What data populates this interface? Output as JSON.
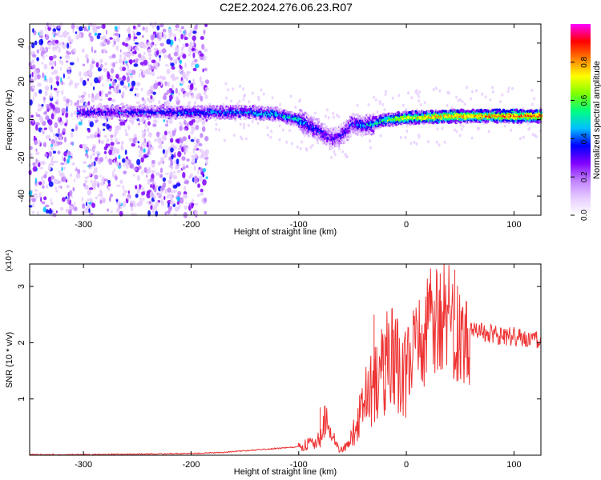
{
  "title": "C2E2.2024.276.06.23.R07",
  "chart_data": [
    {
      "type": "heatmap",
      "xlabel": "Height of straight line (km)",
      "ylabel": "Frequency (Hz)",
      "xlim": [
        -350,
        125
      ],
      "ylim": [
        -50,
        50
      ],
      "x_ticks": [
        -300,
        -200,
        -100,
        0,
        100
      ],
      "x_tick_labels": [
        "-300",
        "-200",
        "-100",
        "0",
        "100"
      ],
      "y_ticks": [
        -40,
        -20,
        0,
        20,
        40
      ],
      "y_tick_labels": [
        "-40",
        "-20",
        "0",
        "20",
        "40"
      ],
      "colorbar": {
        "label": "Normalized spectral amplitude",
        "range": [
          0,
          1
        ],
        "ticks": [
          0.0,
          0.2,
          0.4,
          0.6,
          0.8
        ],
        "tick_labels": [
          "0.0",
          "0.2",
          "0.4",
          "0.6",
          "0.8"
        ],
        "colors": [
          "#ffffff",
          "#e6ccff",
          "#c080ff",
          "#8000ff",
          "#0000ff",
          "#00c0ff",
          "#00ff80",
          "#80ff00",
          "#ffff00",
          "#ff8000",
          "#ff0000",
          "#ff00ff"
        ]
      },
      "ridge": {
        "x": [
          -300,
          -250,
          -200,
          -150,
          -120,
          -100,
          -90,
          -80,
          -70,
          -60,
          -50,
          -40,
          -30,
          -20,
          0,
          50,
          100,
          125
        ],
        "y": [
          4,
          4,
          4,
          4,
          3,
          0,
          -3,
          -6,
          -10,
          -8,
          -2,
          -3,
          -2,
          0,
          1,
          2,
          2,
          2
        ],
        "amplitude": [
          0.35,
          0.35,
          0.4,
          0.45,
          0.5,
          0.5,
          0.4,
          0.35,
          0.3,
          0.3,
          0.35,
          0.4,
          0.5,
          0.6,
          0.75,
          0.85,
          0.9,
          0.9
        ]
      },
      "noise_region": {
        "x": [
          -350,
          -185
        ],
        "y": [
          -50,
          50
        ],
        "amplitude": 0.15
      }
    },
    {
      "type": "line",
      "xlabel": "Height of straight line (km)",
      "ylabel": "SNR (10 * v/v)",
      "y_multiplier": "(x10⁴)",
      "xlim": [
        -350,
        125
      ],
      "ylim": [
        0,
        3.4
      ],
      "x_ticks": [
        -300,
        -200,
        -100,
        0,
        100
      ],
      "x_tick_labels": [
        "-300",
        "-200",
        "-100",
        "0",
        "100"
      ],
      "y_ticks": [
        1,
        2,
        3
      ],
      "y_tick_labels": [
        "1",
        "2",
        "3"
      ],
      "series": [
        {
          "color": "#ee3333",
          "x": [
            -350,
            -300,
            -250,
            -200,
            -170,
            -150,
            -120,
            -100,
            -90,
            -80,
            -75,
            -70,
            -65,
            -60,
            -55,
            -50,
            -45,
            -40,
            -35,
            -30,
            -25,
            -20,
            -15,
            -10,
            -5,
            0,
            5,
            10,
            15,
            20,
            25,
            30,
            35,
            40,
            45,
            50,
            55,
            60,
            70,
            80,
            90,
            100,
            110,
            125
          ],
          "y": [
            0.01,
            0.01,
            0.02,
            0.03,
            0.05,
            0.08,
            0.12,
            0.15,
            0.2,
            0.3,
            0.6,
            0.5,
            0.15,
            0.1,
            0.2,
            0.35,
            0.6,
            0.9,
            1.1,
            1.3,
            1.5,
            1.6,
            1.7,
            1.6,
            1.5,
            1.6,
            1.8,
            1.9,
            2.1,
            2.3,
            2.5,
            2.4,
            2.6,
            2.5,
            2.4,
            2.35,
            2.3,
            2.25,
            2.2,
            2.15,
            2.1,
            2.12,
            2.08,
            2.06
          ],
          "spikes": [
            {
              "x": -80,
              "y": 0.85
            },
            {
              "x": -60,
              "y": 0.12
            },
            {
              "x": -30,
              "y": 2.5
            },
            {
              "x": -20,
              "y": 2.15
            },
            {
              "x": 20,
              "y": 2.9
            },
            {
              "x": 35,
              "y": 3.4
            },
            {
              "x": 45,
              "y": 3.3
            }
          ]
        }
      ]
    }
  ]
}
